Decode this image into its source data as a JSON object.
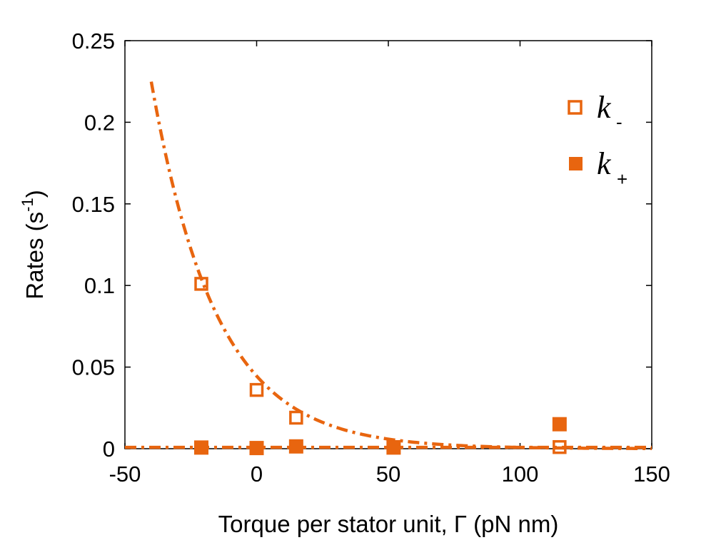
{
  "chart_data": {
    "type": "scatter",
    "title": "",
    "xlabel": "Torque per stator unit, Γ (pN nm)",
    "ylabel": {
      "main": "Rates (s",
      "sup": "-1",
      "close": ")"
    },
    "xlim": [
      -50,
      150
    ],
    "ylim": [
      0,
      0.25
    ],
    "xticks": [
      -50,
      0,
      50,
      100,
      150
    ],
    "xtick_labels": [
      "-50",
      "0",
      "50",
      "100",
      "150"
    ],
    "yticks": [
      0,
      0.05,
      0.1,
      0.15,
      0.2,
      0.25
    ],
    "ytick_labels": [
      "0",
      "0.05",
      "0.1",
      "0.15",
      "0.2",
      "0.25"
    ],
    "grid": false,
    "legend_position": "top-right",
    "color": "#e8650f",
    "series": [
      {
        "key": "k_minus",
        "name": "k",
        "sub": "-",
        "marker": "open-square",
        "x": [
          -21,
          0,
          15,
          52,
          115
        ],
        "y": [
          0.101,
          0.036,
          0.019,
          0.001,
          0.001
        ]
      },
      {
        "key": "k_plus",
        "name": "k",
        "sub": "+",
        "marker": "filled-square",
        "x": [
          -21,
          0,
          15,
          52,
          115
        ],
        "y": [
          0.0007,
          0.0004,
          0.0014,
          0.0007,
          0.015
        ]
      }
    ],
    "fits": [
      {
        "for": "k_minus",
        "style": "dash-dot",
        "model": "exponential",
        "a": 0.0445,
        "b": 0.0405,
        "x_range": [
          -40,
          150
        ]
      },
      {
        "for": "k_plus",
        "style": "dash-dot",
        "model": "constant",
        "value": 0.0008,
        "x_range": [
          -50,
          150
        ]
      }
    ]
  }
}
